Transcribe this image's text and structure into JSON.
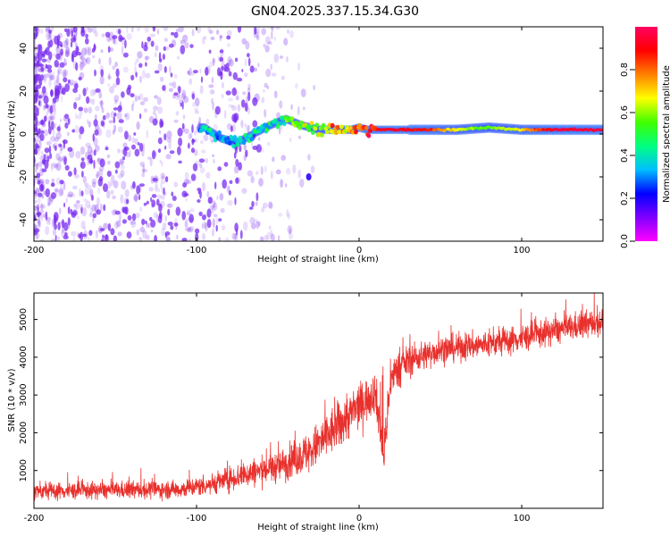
{
  "title": "GN04.2025.337.15.34.G30",
  "colors": {
    "snr_line": "#e8302c",
    "weak_signal": "#7a2cf0",
    "colorbar_stops": [
      "#ff00ff",
      "#7f00ff",
      "#0000ff",
      "#00bfff",
      "#00ff80",
      "#40ff00",
      "#ffff00",
      "#ff8000",
      "#ff0000",
      "#ff0060"
    ]
  },
  "chart_data": [
    {
      "type": "heatmap",
      "name": "spectrogram",
      "xlabel": "Height of straight line (km)",
      "ylabel": "Frequency (Hz)",
      "xlim": [
        -200,
        150
      ],
      "ylim": [
        -50,
        50
      ],
      "xticks": [
        -200,
        -100,
        0,
        100
      ],
      "xtick_labels": [
        "-200",
        "-100",
        "0",
        "100"
      ],
      "yticks": [
        -40,
        -20,
        0,
        20,
        40
      ],
      "ytick_labels": [
        "-40",
        "-20",
        "0",
        "20",
        "40"
      ],
      "colorbar": {
        "label": "Normalized spectral amplitude",
        "range": [
          0,
          1
        ],
        "ticks": [
          0.0,
          0.2,
          0.4,
          0.6,
          0.8
        ],
        "tick_labels": [
          "0.0",
          "0.2",
          "0.4",
          "0.6",
          "0.8"
        ]
      },
      "ridge": {
        "description_points_x": [
          -95,
          -85,
          -75,
          -65,
          -55,
          -45,
          -35,
          -25,
          -15,
          -5,
          0,
          5,
          20,
          40,
          60,
          80,
          100,
          120,
          150
        ],
        "frequency_hz": [
          3,
          -2,
          -4,
          0,
          4,
          7,
          4,
          2,
          2,
          2,
          3,
          2,
          2,
          2,
          2,
          3,
          2,
          2,
          2
        ],
        "amplitude": [
          0.35,
          0.3,
          0.35,
          0.4,
          0.45,
          0.5,
          0.55,
          0.6,
          0.7,
          0.75,
          0.8,
          0.85,
          0.95,
          0.9,
          0.65,
          0.55,
          0.7,
          0.95,
          0.95
        ]
      },
      "noise_region_x": [
        -200,
        -60
      ],
      "noise_amplitude": 0.1
    },
    {
      "type": "line",
      "name": "snr",
      "xlabel": "Height of straight line (km)",
      "ylabel": "SNR (10 * v/v)",
      "xlim": [
        -200,
        150
      ],
      "ylim": [
        0,
        5700
      ],
      "xticks": [
        -200,
        -100,
        0,
        100
      ],
      "xtick_labels": [
        "-200",
        "-100",
        "0",
        "100"
      ],
      "yticks": [
        1000,
        2000,
        3000,
        4000,
        5000
      ],
      "ytick_labels": [
        "1000",
        "2000",
        "3000",
        "4000",
        "5000"
      ],
      "trend_x": [
        -200,
        -150,
        -110,
        -90,
        -70,
        -50,
        -30,
        -20,
        -10,
        0,
        10,
        15,
        20,
        30,
        50,
        80,
        100,
        120,
        150
      ],
      "trend_y": [
        450,
        480,
        500,
        650,
        900,
        1100,
        1500,
        1900,
        2300,
        2700,
        3100,
        1400,
        3500,
        3900,
        4200,
        4350,
        4500,
        4700,
        4950
      ],
      "spread": [
        250,
        250,
        260,
        300,
        400,
        450,
        600,
        700,
        700,
        650,
        600,
        500,
        500,
        450,
        400,
        400,
        400,
        400,
        400
      ]
    }
  ]
}
